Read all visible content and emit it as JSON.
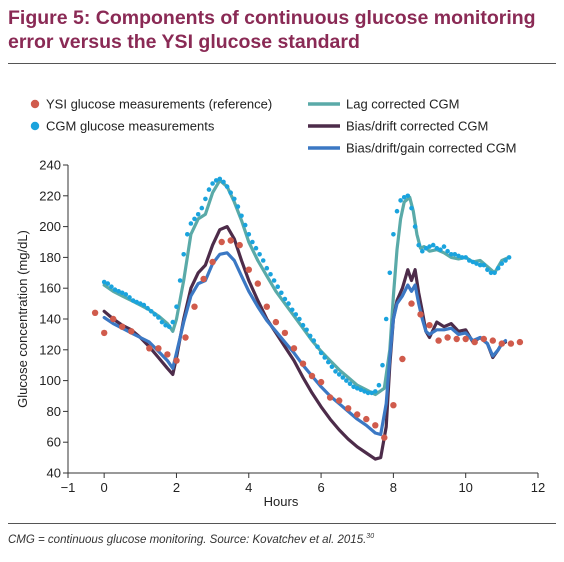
{
  "figure": {
    "title": "Figure 5: Components of continuous glucose monitoring error versus the YSI glucose standard",
    "footnote": "CMG = continuous glucose monitoring. Source: Kovatchev et al. 2015.",
    "footnote_ref": "30"
  },
  "colors": {
    "title": "#8a2a55",
    "ysi": "#d05b4c",
    "cgm": "#1aa3dd",
    "lag": "#5aaaa8",
    "bias": "#4d2c4a",
    "gain": "#3b78c4"
  },
  "chart_data": {
    "type": "line",
    "xlabel": "Hours",
    "ylabel": "Glucose concentration (mg/dL)",
    "xlim": [
      -1,
      12
    ],
    "ylim": [
      40,
      240
    ],
    "xticks": [
      -1,
      0,
      2,
      4,
      6,
      8,
      10,
      12
    ],
    "xtick_labels": [
      "−1",
      "0",
      "2",
      "4",
      "6",
      "8",
      "10",
      "12"
    ],
    "yticks": [
      40,
      60,
      80,
      100,
      120,
      140,
      160,
      180,
      200,
      220,
      240
    ],
    "grid": false,
    "legend_position": "top",
    "series": [
      {
        "key": "ysi",
        "name": "YSI glucose measurements (reference)",
        "kind": "scatter",
        "color": "#d05b4c",
        "x": [
          -0.25,
          0,
          0.25,
          0.5,
          0.75,
          1.25,
          1.5,
          1.75,
          2.0,
          2.25,
          2.5,
          2.75,
          3.0,
          3.25,
          3.5,
          3.75,
          4.0,
          4.25,
          4.5,
          4.75,
          5.0,
          5.25,
          5.5,
          5.75,
          6.0,
          6.25,
          6.5,
          6.75,
          7.0,
          7.25,
          7.5,
          7.75,
          8.0,
          8.25,
          8.5,
          8.75,
          9.0,
          9.25,
          9.5,
          9.75,
          10.0,
          10.25,
          10.5,
          10.75,
          11.0,
          11.25,
          11.5
        ],
        "y": [
          144,
          131,
          140,
          135,
          132,
          121,
          121,
          117,
          113,
          128,
          148,
          166,
          177,
          190,
          191,
          188,
          172,
          163,
          148,
          138,
          131,
          121,
          111,
          103,
          99,
          89,
          87,
          82,
          78,
          75,
          71,
          63,
          84,
          114,
          150,
          143,
          136,
          126,
          128,
          127,
          127,
          125,
          127,
          126,
          124,
          124,
          125
        ]
      },
      {
        "key": "cgm",
        "name": "CGM glucose measurements",
        "kind": "scatter",
        "color": "#1aa3dd",
        "x": [
          0,
          0.1,
          0.2,
          0.3,
          0.4,
          0.5,
          0.6,
          0.7,
          0.8,
          0.9,
          1.0,
          1.1,
          1.2,
          1.3,
          1.4,
          1.5,
          1.6,
          1.7,
          1.8,
          1.9,
          2.0,
          2.1,
          2.2,
          2.3,
          2.4,
          2.5,
          2.6,
          2.7,
          2.8,
          2.9,
          3.0,
          3.1,
          3.2,
          3.3,
          3.4,
          3.5,
          3.6,
          3.7,
          3.8,
          3.9,
          4.0,
          4.1,
          4.2,
          4.3,
          4.4,
          4.5,
          4.6,
          4.7,
          4.8,
          4.9,
          5.0,
          5.1,
          5.2,
          5.3,
          5.4,
          5.5,
          5.6,
          5.7,
          5.8,
          5.9,
          6.0,
          6.1,
          6.2,
          6.3,
          6.4,
          6.5,
          6.6,
          6.7,
          6.8,
          6.9,
          7.0,
          7.1,
          7.2,
          7.3,
          7.4,
          7.5,
          7.6,
          7.7,
          7.8,
          7.9,
          8.0,
          8.1,
          8.2,
          8.3,
          8.4,
          8.5,
          8.6,
          8.7,
          8.8,
          8.9,
          9.0,
          9.1,
          9.2,
          9.3,
          9.4,
          9.5,
          9.6,
          9.7,
          9.8,
          9.9,
          10.0,
          10.1,
          10.2,
          10.3,
          10.4,
          10.5,
          10.6,
          10.7,
          10.8,
          10.9,
          11.0,
          11.1,
          11.2
        ],
        "y": [
          164,
          163,
          161,
          159,
          158,
          157,
          156,
          154,
          152,
          151,
          150,
          149,
          147,
          145,
          143,
          141,
          138,
          136,
          135,
          138,
          148,
          165,
          182,
          195,
          202,
          205,
          208,
          212,
          218,
          224,
          228,
          230,
          231,
          229,
          226,
          222,
          218,
          213,
          207,
          201,
          195,
          190,
          186,
          182,
          178,
          173,
          169,
          165,
          161,
          157,
          153,
          150,
          146,
          143,
          140,
          136,
          133,
          129,
          126,
          122,
          118,
          115,
          112,
          109,
          106,
          104,
          102,
          100,
          98,
          96,
          95,
          94,
          93,
          92,
          92,
          93,
          97,
          110,
          140,
          170,
          195,
          210,
          217,
          219,
          220,
          212,
          200,
          188,
          184,
          186,
          187,
          188,
          186,
          185,
          187,
          184,
          182,
          182,
          181,
          180,
          180,
          178,
          177,
          176,
          175,
          175,
          172,
          170,
          170,
          173,
          176,
          178,
          180
        ]
      },
      {
        "key": "lag",
        "name": "Lag corrected CGM",
        "kind": "line",
        "color": "#5aaaa8",
        "x": [
          0,
          0.25,
          0.5,
          0.75,
          1.0,
          1.25,
          1.5,
          1.75,
          1.9,
          2.0,
          2.2,
          2.4,
          2.6,
          2.8,
          3.0,
          3.2,
          3.4,
          3.6,
          3.8,
          4.0,
          4.25,
          4.5,
          4.75,
          5.0,
          5.25,
          5.5,
          5.75,
          6.0,
          6.25,
          6.5,
          6.75,
          7.0,
          7.25,
          7.5,
          7.75,
          7.9,
          8.0,
          8.1,
          8.2,
          8.3,
          8.45,
          8.55,
          8.65,
          8.75,
          8.85,
          9.0,
          9.2,
          9.4,
          9.6,
          9.8,
          10.0,
          10.2,
          10.4,
          10.6,
          10.8,
          11.0,
          11.2
        ],
        "y": [
          162,
          158,
          155,
          152,
          149,
          146,
          142,
          137,
          132,
          140,
          165,
          195,
          205,
          208,
          222,
          230,
          226,
          216,
          204,
          190,
          178,
          168,
          158,
          150,
          142,
          134,
          126,
          119,
          113,
          107,
          102,
          97,
          94,
          91,
          95,
          120,
          155,
          185,
          205,
          216,
          219,
          210,
          195,
          186,
          187,
          184,
          185,
          183,
          180,
          179,
          180,
          177,
          178,
          174,
          170,
          178,
          180
        ]
      },
      {
        "key": "bias",
        "name": "Bias/drift corrected CGM",
        "kind": "line",
        "color": "#4d2c4a",
        "x": [
          0,
          0.25,
          0.5,
          0.75,
          1.0,
          1.25,
          1.5,
          1.75,
          1.9,
          2.0,
          2.2,
          2.4,
          2.6,
          2.8,
          3.0,
          3.2,
          3.4,
          3.6,
          3.8,
          4.0,
          4.25,
          4.5,
          4.75,
          5.0,
          5.25,
          5.5,
          5.75,
          6.0,
          6.25,
          6.5,
          6.75,
          7.0,
          7.25,
          7.5,
          7.65,
          7.8,
          7.9,
          8.0,
          8.1,
          8.25,
          8.4,
          8.5,
          8.6,
          8.7,
          8.8,
          8.9,
          9.0,
          9.2,
          9.4,
          9.6,
          9.8,
          10.0,
          10.2,
          10.4,
          10.6,
          10.75,
          10.9,
          11.0,
          11.1
        ],
        "y": [
          145,
          140,
          136,
          133,
          128,
          122,
          115,
          108,
          104,
          115,
          140,
          160,
          170,
          175,
          188,
          198,
          200,
          192,
          178,
          165,
          152,
          140,
          131,
          122,
          113,
          102,
          92,
          83,
          75,
          68,
          62,
          57,
          53,
          49,
          50,
          70,
          110,
          140,
          152,
          160,
          172,
          165,
          172,
          157,
          145,
          132,
          128,
          138,
          135,
          137,
          132,
          133,
          125,
          128,
          124,
          115,
          120,
          124,
          125
        ]
      },
      {
        "key": "gain",
        "name": "Bias/drift/gain corrected CGM",
        "kind": "line",
        "color": "#3b78c4",
        "x": [
          0,
          0.25,
          0.5,
          0.75,
          1.0,
          1.25,
          1.5,
          1.75,
          1.9,
          2.0,
          2.2,
          2.4,
          2.6,
          2.8,
          3.0,
          3.2,
          3.4,
          3.6,
          3.8,
          4.0,
          4.25,
          4.5,
          4.75,
          5.0,
          5.25,
          5.5,
          5.75,
          6.0,
          6.25,
          6.5,
          6.75,
          7.0,
          7.25,
          7.5,
          7.65,
          7.8,
          7.9,
          8.0,
          8.1,
          8.25,
          8.4,
          8.5,
          8.6,
          8.7,
          8.8,
          8.9,
          9.0,
          9.2,
          9.4,
          9.6,
          9.8,
          10.0,
          10.2,
          10.4,
          10.6,
          10.75,
          10.9,
          11.0,
          11.1
        ],
        "y": [
          141,
          137,
          134,
          131,
          128,
          125,
          119,
          113,
          108,
          118,
          138,
          155,
          163,
          165,
          176,
          182,
          183,
          178,
          168,
          158,
          148,
          139,
          132,
          125,
          118,
          110,
          103,
          96,
          90,
          85,
          80,
          75,
          71,
          66,
          65,
          85,
          115,
          140,
          150,
          155,
          162,
          158,
          162,
          150,
          140,
          132,
          130,
          133,
          133,
          134,
          130,
          131,
          126,
          128,
          124,
          116,
          120,
          124,
          126
        ]
      }
    ]
  }
}
